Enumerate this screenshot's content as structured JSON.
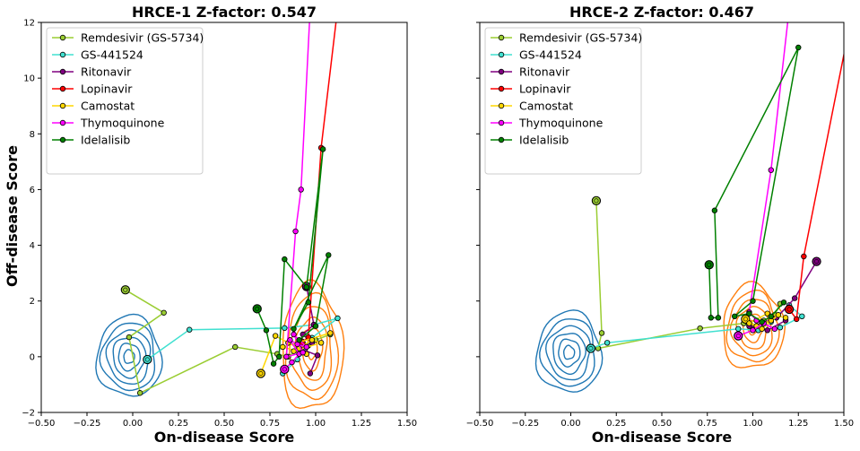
{
  "chart_data": [
    {
      "type": "line",
      "title": "HRCE-1 Z-factor: 0.547",
      "xlabel": "On-disease Score",
      "ylabel": "Off-disease Score",
      "xlim": [
        -0.5,
        1.5
      ],
      "ylim": [
        -2,
        12
      ],
      "xticks": [
        "−0.50",
        "−0.25",
        "0.00",
        "0.25",
        "0.50",
        "0.75",
        "1.00",
        "1.25",
        "1.50"
      ],
      "yticks": [
        "−2",
        "0",
        "2",
        "4",
        "6",
        "8",
        "10",
        "12"
      ],
      "legend": "top-left",
      "grid": false,
      "series": [
        {
          "name": "Remdesivir (GS-5734)",
          "color": "#9acd32",
          "points": [
            [
              -0.04,
              2.4
            ],
            [
              0.17,
              1.58
            ],
            [
              -0.02,
              0.7
            ],
            [
              0.04,
              -1.3
            ],
            [
              0.56,
              0.35
            ],
            [
              0.79,
              0.1
            ],
            [
              0.85,
              0.0
            ],
            [
              0.9,
              0.25
            ],
            [
              0.96,
              0.4
            ],
            [
              1.0,
              0.6
            ],
            [
              1.08,
              0.8
            ]
          ]
        },
        {
          "name": "GS-441524",
          "color": "#40e0d0",
          "points": [
            [
              0.08,
              -0.1
            ],
            [
              0.31,
              0.97
            ],
            [
              0.83,
              1.03
            ],
            [
              0.99,
              1.15
            ],
            [
              1.12,
              1.38
            ],
            [
              0.98,
              0.68
            ],
            [
              0.94,
              0.2
            ],
            [
              0.9,
              -0.1
            ],
            [
              0.82,
              -0.6
            ]
          ]
        },
        {
          "name": "Ritonavir",
          "color": "#800080",
          "points": [
            [
              0.95,
              2.52
            ],
            [
              0.99,
              1.15
            ],
            [
              0.93,
              0.8
            ],
            [
              0.98,
              0.5
            ],
            [
              0.91,
              0.3
            ],
            [
              1.01,
              0.05
            ],
            [
              0.97,
              -0.6
            ]
          ]
        },
        {
          "name": "Lopinavir",
          "color": "#ff0000",
          "points": [
            [
              0.92,
              0.5
            ],
            [
              0.96,
              0.7
            ],
            [
              1.03,
              7.5
            ],
            [
              1.12,
              12.5
            ]
          ]
        },
        {
          "name": "Camostat",
          "color": "#ffd700",
          "points": [
            [
              0.7,
              -0.6
            ],
            [
              0.78,
              0.75
            ],
            [
              0.85,
              0.5
            ],
            [
              0.91,
              0.3
            ],
            [
              0.98,
              0.6
            ],
            [
              1.03,
              0.5
            ],
            [
              0.88,
              0.2
            ],
            [
              0.95,
              0.1
            ],
            [
              0.82,
              0.35
            ],
            [
              1.08,
              0.85
            ]
          ]
        },
        {
          "name": "Thymoquinone",
          "color": "#ff00ff",
          "points": [
            [
              0.83,
              -0.45
            ],
            [
              0.87,
              -0.2
            ],
            [
              0.91,
              0.1
            ],
            [
              0.86,
              0.6
            ],
            [
              0.9,
              0.45
            ],
            [
              0.95,
              0.35
            ],
            [
              0.88,
              0.8
            ],
            [
              0.93,
              0.15
            ],
            [
              0.84,
              0.0
            ],
            [
              0.89,
              4.5
            ],
            [
              0.92,
              6.0
            ],
            [
              0.97,
              12.5
            ]
          ]
        },
        {
          "name": "Idelalisib",
          "color": "#008000",
          "points": [
            [
              0.68,
              1.72
            ],
            [
              0.73,
              0.95
            ],
            [
              0.77,
              -0.25
            ],
            [
              0.8,
              0.0
            ],
            [
              0.83,
              3.5
            ],
            [
              0.95,
              2.5
            ],
            [
              1.04,
              7.45
            ],
            [
              0.96,
              1.95
            ],
            [
              0.88,
              1.0
            ],
            [
              1.07,
              3.65
            ],
            [
              1.0,
              1.1
            ],
            [
              0.91,
              0.6
            ]
          ]
        }
      ]
    },
    {
      "type": "line",
      "title": "HRCE-2 Z-factor: 0.467",
      "xlabel": "On-disease Score",
      "ylabel": "",
      "xlim": [
        -0.5,
        1.5
      ],
      "ylim": [
        -2,
        12
      ],
      "xticks": [
        "−0.50",
        "−0.25",
        "0.00",
        "0.25",
        "0.50",
        "0.75",
        "1.00",
        "1.25",
        "1.50"
      ],
      "yticks": [],
      "legend": "top-left",
      "grid": false,
      "series": [
        {
          "name": "Remdesivir (GS-5734)",
          "color": "#9acd32",
          "points": [
            [
              0.14,
              5.6
            ],
            [
              0.17,
              0.85
            ],
            [
              0.15,
              0.3
            ],
            [
              0.71,
              1.02
            ],
            [
              0.95,
              1.2
            ],
            [
              1.0,
              1.0
            ],
            [
              1.06,
              1.3
            ],
            [
              1.12,
              1.5
            ],
            [
              1.15,
              1.9
            ]
          ]
        },
        {
          "name": "GS-441524",
          "color": "#40e0d0",
          "points": [
            [
              0.11,
              0.3
            ],
            [
              0.2,
              0.5
            ],
            [
              0.92,
              1.0
            ],
            [
              1.03,
              0.95
            ],
            [
              1.1,
              1.25
            ],
            [
              1.2,
              1.85
            ],
            [
              1.27,
              1.45
            ],
            [
              1.15,
              1.05
            ]
          ]
        },
        {
          "name": "Ritonavir",
          "color": "#800080",
          "points": [
            [
              1.35,
              3.42
            ],
            [
              1.23,
              2.1
            ],
            [
              1.13,
              1.4
            ],
            [
              1.05,
              1.2
            ],
            [
              0.98,
              1.1
            ],
            [
              1.08,
              0.95
            ],
            [
              1.18,
              1.3
            ]
          ]
        },
        {
          "name": "Lopinavir",
          "color": "#ff0000",
          "points": [
            [
              1.2,
              1.7
            ],
            [
              1.24,
              1.35
            ],
            [
              1.28,
              3.6
            ],
            [
              1.52,
              11.5
            ]
          ]
        },
        {
          "name": "Camostat",
          "color": "#ffd700",
          "points": [
            [
              0.96,
              1.35
            ],
            [
              1.02,
              1.1
            ],
            [
              1.1,
              1.3
            ],
            [
              1.14,
              1.5
            ],
            [
              1.05,
              1.0
            ],
            [
              0.98,
              1.2
            ],
            [
              1.08,
              1.55
            ],
            [
              1.18,
              1.4
            ]
          ]
        },
        {
          "name": "Thymoquinone",
          "color": "#ff00ff",
          "points": [
            [
              0.92,
              0.75
            ],
            [
              1.0,
              0.95
            ],
            [
              1.06,
              1.2
            ],
            [
              1.12,
              1.0
            ],
            [
              1.02,
              1.3
            ],
            [
              0.98,
              1.6
            ],
            [
              1.1,
              6.7
            ],
            [
              1.2,
              12.5
            ]
          ]
        },
        {
          "name": "Idelalisib",
          "color": "#008000",
          "points": [
            [
              0.76,
              3.3
            ],
            [
              0.77,
              1.4
            ],
            [
              0.81,
              1.4
            ],
            [
              0.79,
              5.25
            ],
            [
              1.25,
              11.1
            ],
            [
              1.0,
              2.0
            ],
            [
              0.9,
              1.45
            ],
            [
              0.98,
              1.55
            ],
            [
              1.05,
              1.25
            ],
            [
              1.1,
              1.45
            ],
            [
              1.17,
              1.95
            ]
          ]
        }
      ]
    }
  ]
}
